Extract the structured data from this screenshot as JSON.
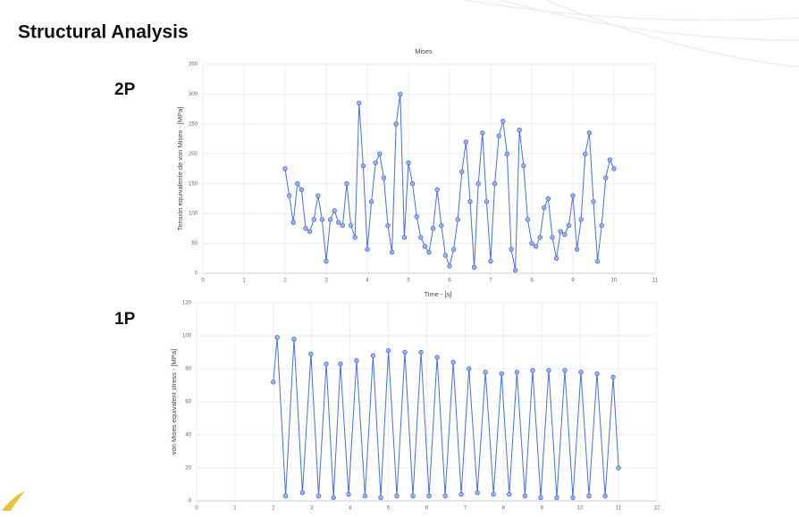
{
  "title": "Structural Analysis",
  "panel_labels": [
    "2P",
    "1P"
  ],
  "chart_data": [
    {
      "type": "line",
      "title": "Mises",
      "xlabel": "Time - [s]",
      "ylabel": "Tensión equivalente de von Mises - [MPa]",
      "xlim": [
        0,
        11
      ],
      "xticks": [
        0,
        1,
        2,
        3,
        4,
        5,
        6,
        7,
        8,
        9,
        10,
        11
      ],
      "ylim": [
        0,
        350
      ],
      "yticks": [
        0,
        50,
        100,
        150,
        200,
        250,
        300,
        350
      ],
      "grid": true,
      "x": [
        2.0,
        2.1,
        2.2,
        2.3,
        2.4,
        2.5,
        2.6,
        2.7,
        2.8,
        2.9,
        3.0,
        3.1,
        3.2,
        3.3,
        3.4,
        3.5,
        3.6,
        3.7,
        3.8,
        3.9,
        4.0,
        4.1,
        4.2,
        4.3,
        4.4,
        4.5,
        4.6,
        4.7,
        4.8,
        4.9,
        5.0,
        5.1,
        5.2,
        5.3,
        5.4,
        5.5,
        5.6,
        5.7,
        5.8,
        5.9,
        6.0,
        6.1,
        6.2,
        6.3,
        6.4,
        6.5,
        6.6,
        6.7,
        6.8,
        6.9,
        7.0,
        7.1,
        7.2,
        7.3,
        7.4,
        7.5,
        7.6,
        7.7,
        7.8,
        7.9,
        8.0,
        8.1,
        8.2,
        8.3,
        8.4,
        8.5,
        8.6,
        8.7,
        8.8,
        8.9,
        9.0,
        9.1,
        9.2,
        9.3,
        9.4,
        9.5,
        9.6,
        9.7,
        9.8,
        9.9,
        10.0
      ],
      "series": [
        {
          "color": "#4a6fd4",
          "values": [
            175,
            130,
            85,
            150,
            140,
            75,
            70,
            90,
            130,
            90,
            20,
            90,
            105,
            85,
            80,
            150,
            80,
            60,
            285,
            180,
            40,
            120,
            185,
            200,
            160,
            80,
            35,
            250,
            300,
            60,
            185,
            150,
            95,
            60,
            45,
            35,
            75,
            140,
            80,
            30,
            12,
            40,
            90,
            170,
            220,
            120,
            10,
            150,
            235,
            120,
            20,
            150,
            230,
            255,
            200,
            40,
            5,
            240,
            180,
            90,
            50,
            45,
            60,
            110,
            125,
            60,
            25,
            70,
            65,
            80,
            130,
            40,
            90,
            200,
            235,
            120,
            20,
            80,
            160,
            190,
            175
          ]
        }
      ]
    },
    {
      "type": "line",
      "ylabel": "von Mises equivalent stress - [MPa]",
      "xlim": [
        0,
        12
      ],
      "xticks": [
        0,
        1,
        2,
        3,
        4,
        5,
        6,
        7,
        8,
        9,
        10,
        11,
        12
      ],
      "ylim": [
        0,
        120
      ],
      "yticks": [
        0,
        20,
        40,
        60,
        80,
        100,
        120
      ],
      "grid": true,
      "x": [
        2.0,
        2.1,
        2.32,
        2.54,
        2.76,
        2.98,
        3.18,
        3.38,
        3.57,
        3.75,
        3.96,
        4.17,
        4.39,
        4.6,
        4.8,
        5.0,
        5.22,
        5.43,
        5.64,
        5.85,
        6.06,
        6.27,
        6.48,
        6.69,
        6.9,
        7.1,
        7.32,
        7.53,
        7.74,
        7.95,
        8.15,
        8.35,
        8.56,
        8.76,
        8.97,
        9.18,
        9.39,
        9.6,
        9.81,
        10.02,
        10.23,
        10.44,
        10.65,
        10.86,
        11.0
      ],
      "series": [
        {
          "color": "#4a6fd4",
          "values": [
            72,
            99,
            3,
            98,
            5,
            89,
            3,
            83,
            2,
            83,
            4,
            85,
            3,
            88,
            2,
            91,
            3,
            90,
            3,
            90,
            3,
            87,
            3,
            84,
            4,
            80,
            5,
            78,
            4,
            77,
            4,
            78,
            3,
            79,
            2,
            79,
            2,
            79,
            2,
            78,
            3,
            77,
            3,
            75,
            20
          ]
        }
      ]
    }
  ]
}
